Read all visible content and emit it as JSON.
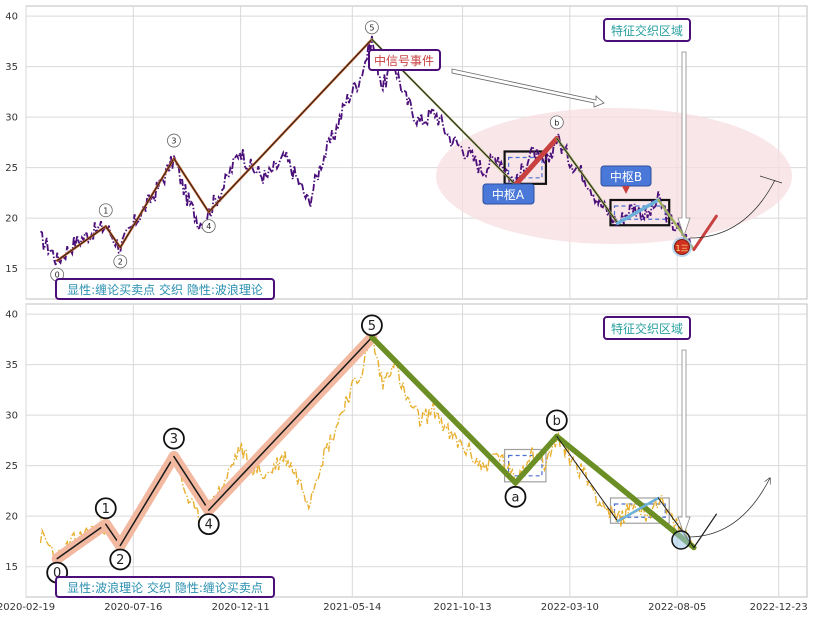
{
  "colors": {
    "price_top": "#4b0f7a",
    "price_bottom": "#e8b030",
    "bi_line": "#1a1a1a",
    "seg_top": "#c8602a",
    "seg_bottom_glow": "#f2b8a0",
    "seg_down": "#6b8f24",
    "zhongshu_box": "#111111",
    "zhongshu_dash": "#4a6fd0",
    "label_blue": "#4a78d8",
    "ellipse_fill": "#f7dde2",
    "teal": "#2aa0a0",
    "box_border": "#4b0f7a",
    "accent_red": "#c84040",
    "light_blue": "#6ab0d8",
    "green_seg": "#a0b060"
  },
  "chart_data": [
    {
      "type": "line",
      "panel": "top",
      "ylim": [
        12,
        41
      ],
      "yticks": [
        15,
        20,
        25,
        30,
        35,
        40
      ],
      "grid": true,
      "legend_text": "显性:缠论买卖点 交织 隐性:波浪理论",
      "annotations": {
        "event_label": "中信号事件",
        "zone_label": "特征交织区域",
        "zhongshu_a": "中枢A",
        "zhongshu_b": "中枢B",
        "buy_marker": "1三"
      },
      "wave_points": [
        {
          "label": "0",
          "x": "2020-04-02",
          "y": 15.8
        },
        {
          "label": "1",
          "x": "2020-06-08",
          "y": 19.2
        },
        {
          "label": "2",
          "x": "2020-06-28",
          "y": 17.1
        },
        {
          "label": "3",
          "x": "2020-09-10",
          "y": 25.9
        },
        {
          "label": "4",
          "x": "2020-10-28",
          "y": 20.6
        },
        {
          "label": "5",
          "x": "2021-06-10",
          "y": 37.7
        },
        {
          "label": "b",
          "x": "2022-02-20",
          "y": 27.9
        }
      ]
    },
    {
      "type": "line",
      "panel": "bottom",
      "ylim": [
        12,
        41
      ],
      "yticks": [
        15,
        20,
        25,
        30,
        35,
        40
      ],
      "grid": true,
      "legend_text": "显性:波浪理论 交织 隐性:缠论买卖点",
      "annotations": {
        "zone_label": "特征交织区域"
      },
      "wave_points": [
        {
          "label": "0",
          "x": "2020-04-02",
          "y": 15.8
        },
        {
          "label": "1",
          "x": "2020-06-08",
          "y": 19.2
        },
        {
          "label": "2",
          "x": "2020-06-28",
          "y": 17.1
        },
        {
          "label": "3",
          "x": "2020-09-10",
          "y": 25.9
        },
        {
          "label": "4",
          "x": "2020-10-28",
          "y": 20.6
        },
        {
          "label": "5",
          "x": "2021-06-10",
          "y": 37.7
        },
        {
          "label": "a",
          "x": "2021-12-25",
          "y": 23.3
        },
        {
          "label": "b",
          "x": "2022-02-20",
          "y": 27.9
        }
      ]
    }
  ],
  "xaxis": {
    "range": [
      "2020-02-19",
      "2023-01-31"
    ],
    "ticks": [
      "2020-02-19",
      "2020-07-16",
      "2020-12-11",
      "2021-05-14",
      "2021-10-13",
      "2022-03-10",
      "2022-08-05",
      "2022-12-23"
    ]
  },
  "series": {
    "bi_path": [
      [
        "2020-04-02",
        15.8
      ],
      [
        "2020-06-08",
        19.2
      ],
      [
        "2020-06-28",
        17.1
      ],
      [
        "2020-09-10",
        25.9
      ],
      [
        "2020-10-28",
        20.6
      ],
      [
        "2021-06-10",
        37.7
      ],
      [
        "2021-12-25",
        23.3
      ],
      [
        "2022-02-20",
        27.9
      ],
      [
        "2022-05-15",
        19.5
      ],
      [
        "2022-07-10",
        21.8
      ],
      [
        "2022-08-28",
        16.9
      ],
      [
        "2022-09-28",
        20.2
      ]
    ],
    "zhongshu_a": {
      "x0": "2021-12-10",
      "x1": "2022-02-05",
      "y0": 23.4,
      "y1": 26.6
    },
    "zhongshu_b": {
      "x0": "2022-05-05",
      "x1": "2022-07-25",
      "y0": 19.3,
      "y1": 21.8
    },
    "price_knots": [
      [
        "2020-03-10",
        18.0
      ],
      [
        "2020-03-25",
        16.8
      ],
      [
        "2020-04-02",
        15.8
      ],
      [
        "2020-04-25",
        17.5
      ],
      [
        "2020-05-15",
        18.4
      ],
      [
        "2020-06-08",
        19.2
      ],
      [
        "2020-06-28",
        17.1
      ],
      [
        "2020-07-20",
        19.8
      ],
      [
        "2020-08-15",
        22.5
      ],
      [
        "2020-09-10",
        25.9
      ],
      [
        "2020-09-28",
        22.0
      ],
      [
        "2020-10-15",
        19.5
      ],
      [
        "2020-10-28",
        20.6
      ],
      [
        "2020-11-20",
        23.5
      ],
      [
        "2020-12-10",
        26.8
      ],
      [
        "2020-12-25",
        25.0
      ],
      [
        "2021-01-15",
        24.0
      ],
      [
        "2021-02-10",
        26.0
      ],
      [
        "2021-02-25",
        24.2
      ],
      [
        "2021-03-15",
        21.5
      ],
      [
        "2021-04-01",
        25.5
      ],
      [
        "2021-04-20",
        28.5
      ],
      [
        "2021-05-05",
        31.5
      ],
      [
        "2021-05-25",
        34.0
      ],
      [
        "2021-06-10",
        37.7
      ],
      [
        "2021-06-25",
        33.0
      ],
      [
        "2021-07-10",
        35.5
      ],
      [
        "2021-07-25",
        32.0
      ],
      [
        "2021-08-15",
        29.5
      ],
      [
        "2021-09-05",
        30.5
      ],
      [
        "2021-09-25",
        28.0
      ],
      [
        "2021-10-20",
        26.5
      ],
      [
        "2021-11-10",
        24.8
      ],
      [
        "2021-12-01",
        26.2
      ],
      [
        "2021-12-25",
        23.3
      ],
      [
        "2022-01-15",
        26.5
      ],
      [
        "2022-02-05",
        25.2
      ],
      [
        "2022-02-20",
        27.9
      ],
      [
        "2022-03-10",
        25.8
      ],
      [
        "2022-04-01",
        24.0
      ],
      [
        "2022-04-20",
        21.5
      ],
      [
        "2022-05-15",
        19.5
      ],
      [
        "2022-06-05",
        21.2
      ],
      [
        "2022-06-25",
        20.2
      ],
      [
        "2022-07-10",
        21.8
      ],
      [
        "2022-07-28",
        19.6
      ],
      [
        "2022-08-15",
        18.2
      ],
      [
        "2022-08-28",
        16.9
      ]
    ]
  }
}
